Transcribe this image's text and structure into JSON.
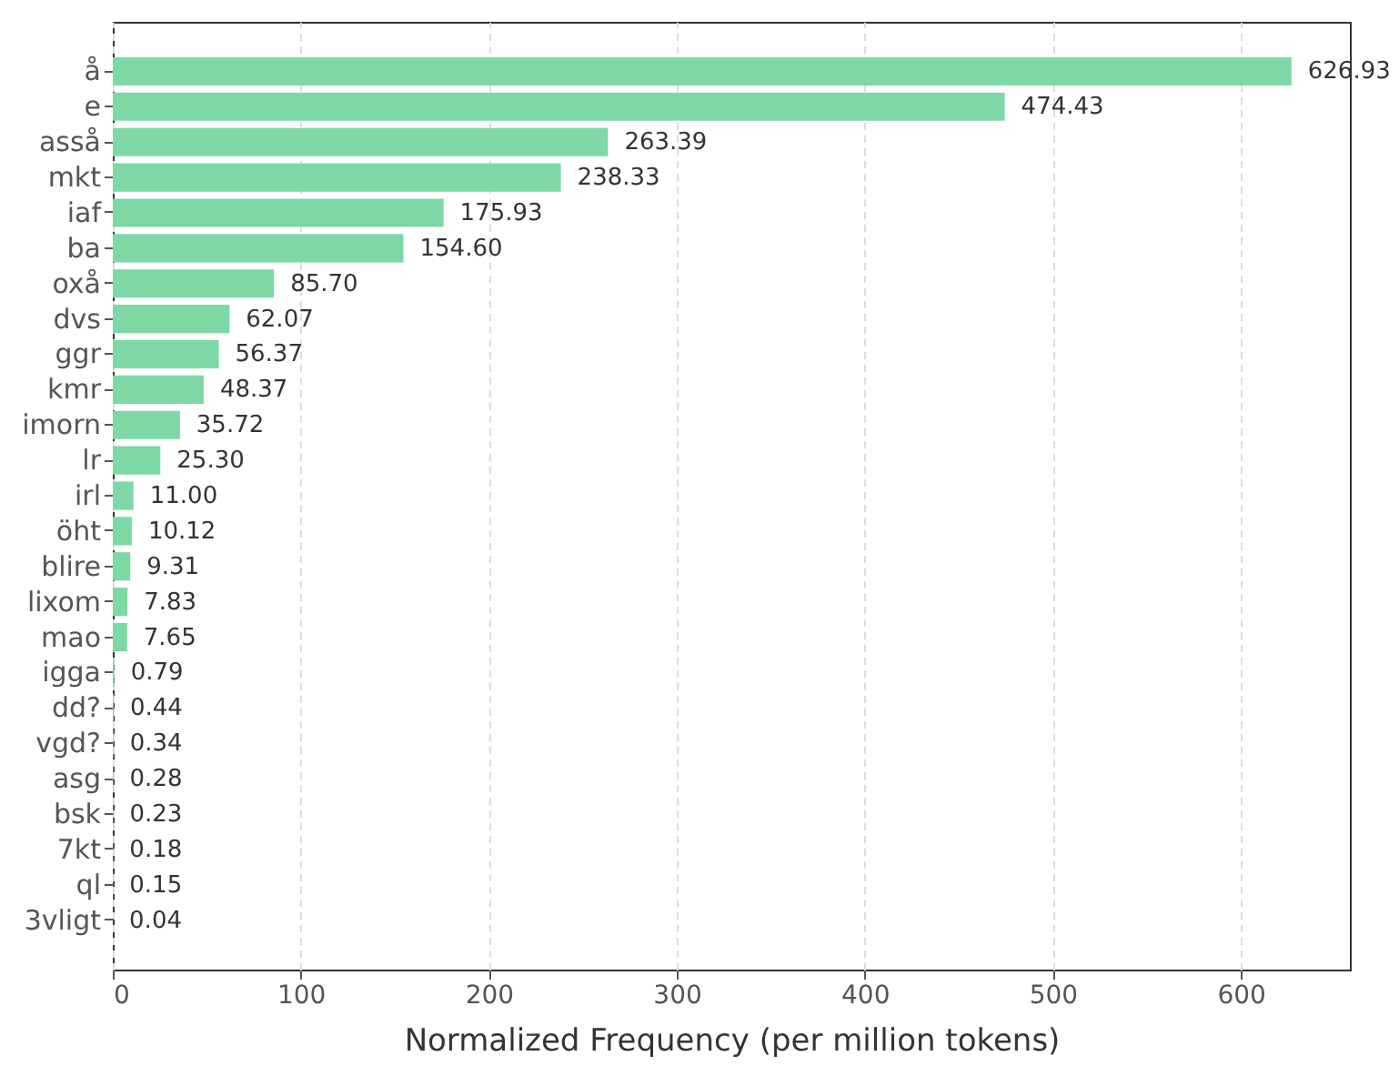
{
  "chart_data": {
    "type": "bar",
    "orientation": "horizontal",
    "xlabel": "Normalized Frequency (per million tokens)",
    "categories": [
      "å",
      "e",
      "asså",
      "mkt",
      "iaf",
      "ba",
      "oxå",
      "dvs",
      "ggr",
      "kmr",
      "imorn",
      "lr",
      "irl",
      "öht",
      "blire",
      "lixom",
      "mao",
      "igga",
      "dd?",
      "vgd?",
      "asg",
      "bsk",
      "7kt",
      "ql",
      "3vligt"
    ],
    "values": [
      626.93,
      474.43,
      263.39,
      238.33,
      175.93,
      154.6,
      85.7,
      62.07,
      56.37,
      48.37,
      35.72,
      25.3,
      11.0,
      10.12,
      9.31,
      7.83,
      7.65,
      0.79,
      0.44,
      0.34,
      0.28,
      0.23,
      0.18,
      0.15,
      0.04
    ],
    "value_labels": [
      "626.93",
      "474.43",
      "263.39",
      "238.33",
      "175.93",
      "154.60",
      "85.70",
      "62.07",
      "56.37",
      "48.37",
      "35.72",
      "25.30",
      "11.00",
      "10.12",
      "9.31",
      "7.83",
      "7.65",
      "0.79",
      "0.44",
      "0.34",
      "0.28",
      "0.23",
      "0.18",
      "0.15",
      "0.04"
    ],
    "color": "#7dd8a5",
    "xlim": [
      0,
      658
    ],
    "xticks": [
      0,
      100,
      200,
      300,
      400,
      500,
      600
    ],
    "grid": "x"
  }
}
